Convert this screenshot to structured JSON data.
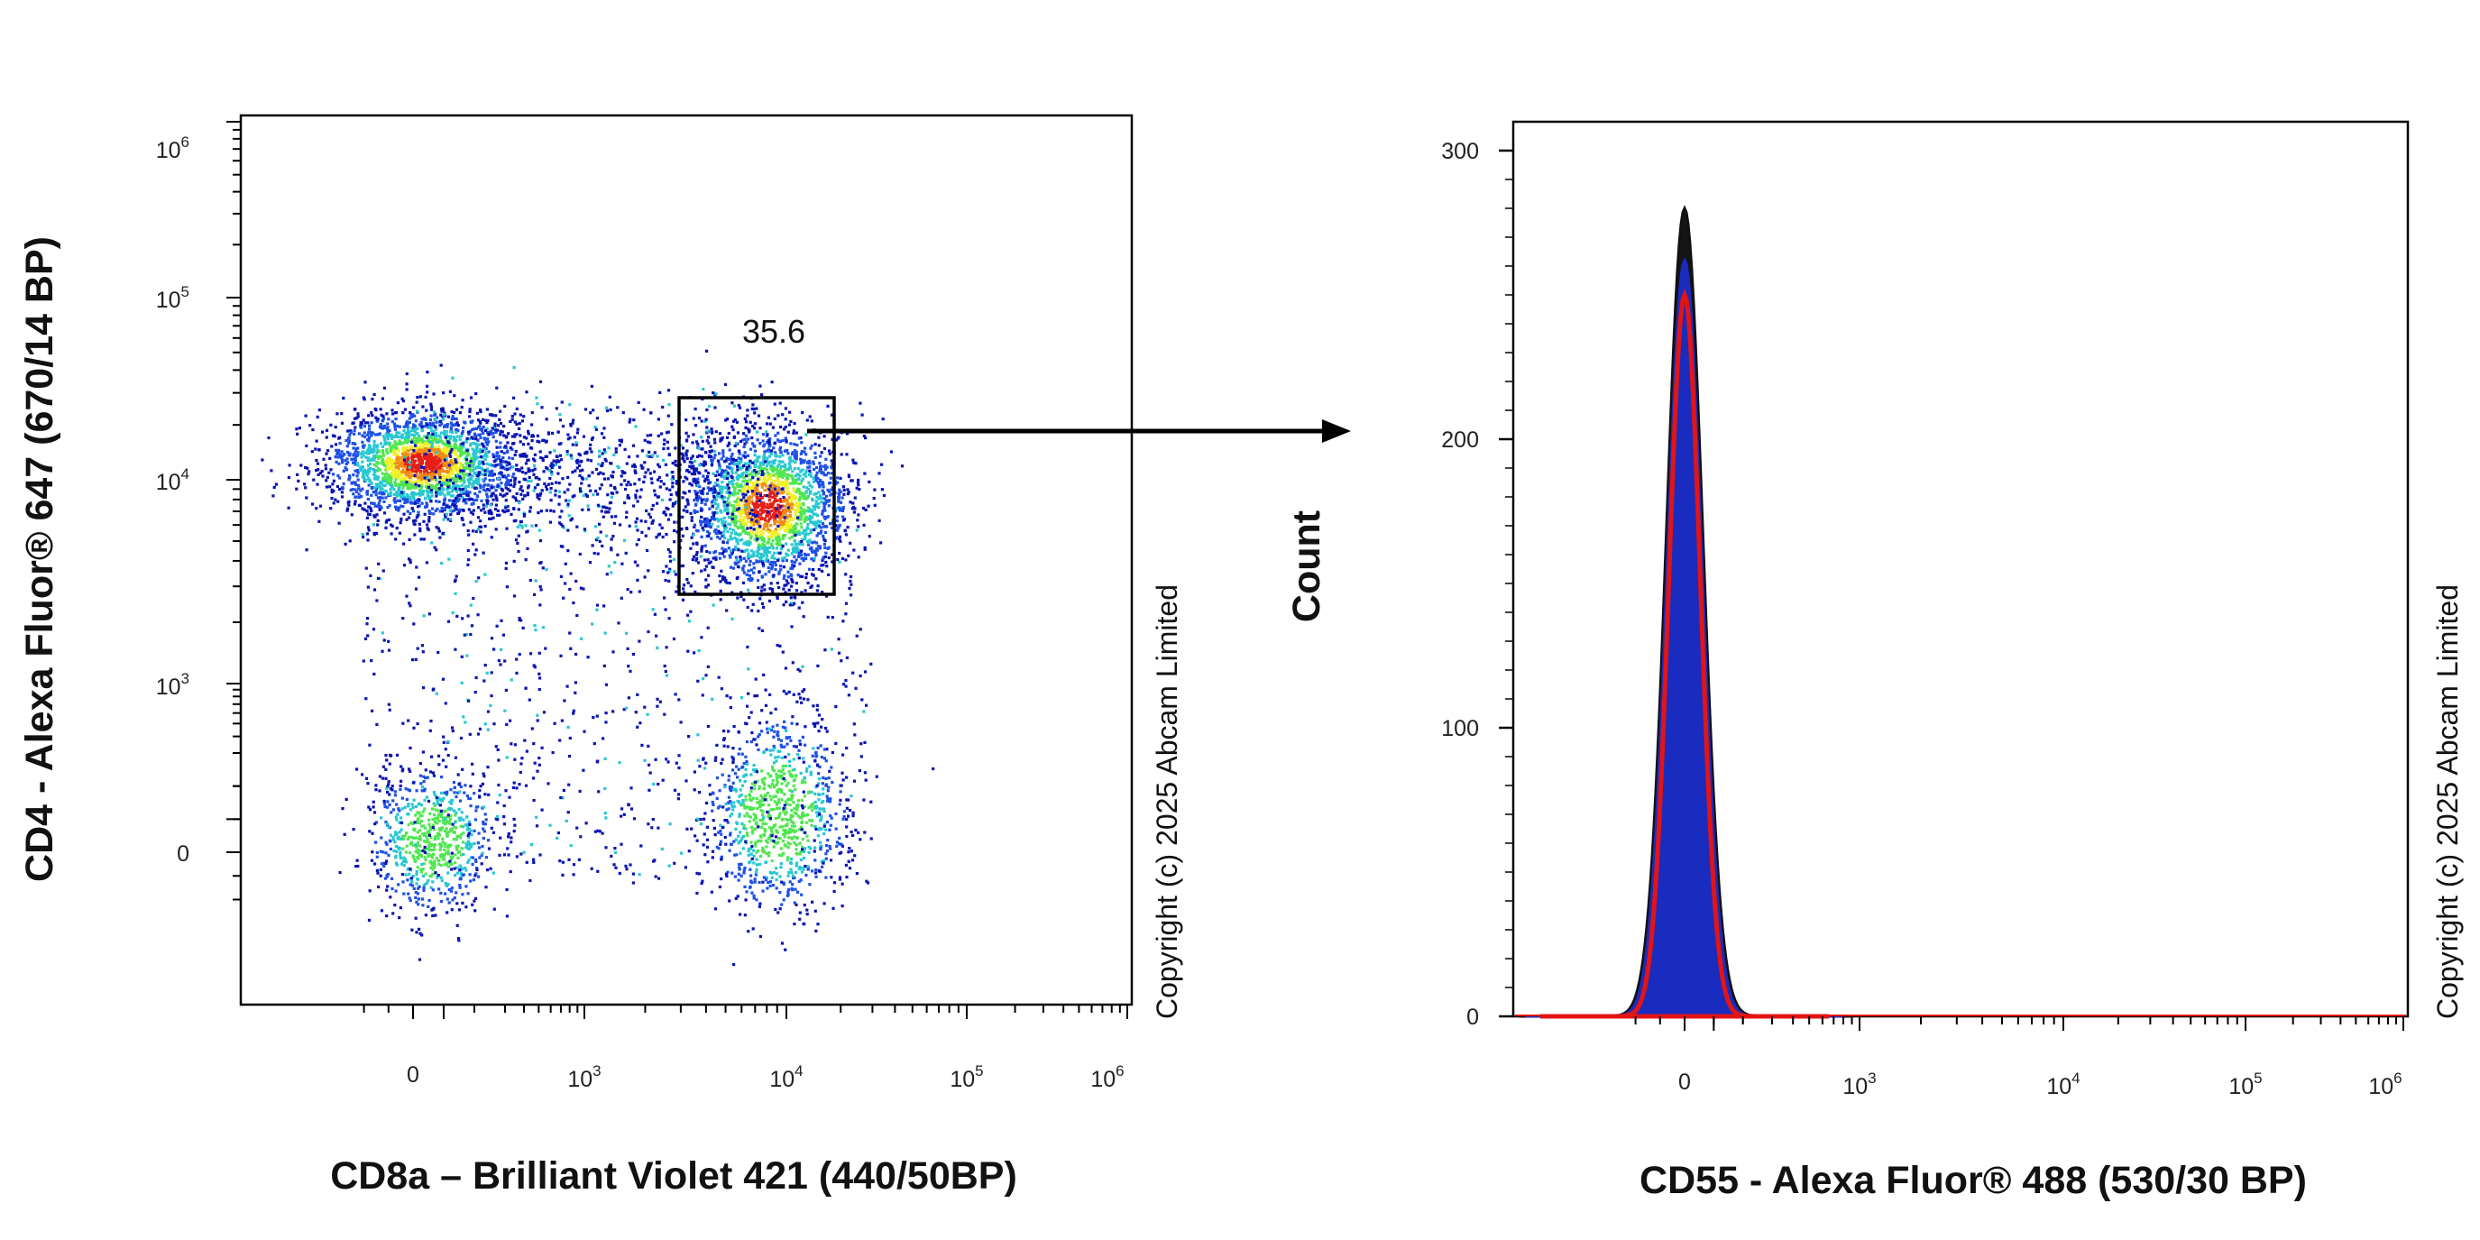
{
  "chart_data": [
    {
      "type": "scatter",
      "subtype": "flow-cytometry-density-dot-plot",
      "title": "",
      "xlabel": "CD8a – Brilliant Violet 421 (440/50BP)",
      "ylabel": "CD4 - Alexa Fluor® 647 (670/14 BP)",
      "x_scale": "biexponential",
      "y_scale": "biexponential",
      "xlim": [
        -250,
        1000000
      ],
      "ylim": [
        -400,
        1000000
      ],
      "x_tick_labels": [
        "0",
        "10^3",
        "10^4",
        "10^5",
        "10^6"
      ],
      "y_tick_labels": [
        "0",
        "10^3",
        "10^4",
        "10^5",
        "10^6"
      ],
      "populations": [
        {
          "x": 30,
          "y": 12500,
          "note": "CD4+ CD8-"
        },
        {
          "x": 8000,
          "y": 7500,
          "note": "CD4+ CD8+ (gated)"
        },
        {
          "x": 60,
          "y": 40,
          "note": "CD4- CD8-"
        },
        {
          "x": 9000,
          "y": 120,
          "note": "CD4- CD8+"
        }
      ],
      "gate": {
        "label": "35.6",
        "x_range": [
          3300,
          20000
        ],
        "y_range": [
          2800,
          28000
        ]
      },
      "density_colors": [
        "#0a14b4",
        "#1e50e6",
        "#28c8d2",
        "#50e650",
        "#f0f028",
        "#f08c14",
        "#e61e14"
      ],
      "grid": false,
      "legend": "none",
      "copyright": "Copyright (c) 2025 Abcam Limited"
    },
    {
      "type": "histogram",
      "title": "",
      "xlabel": "CD55 - Alexa Fluor® 488 (530/30 BP)",
      "ylabel": "Count",
      "x_scale": "biexponential",
      "xlim": [
        -250,
        1000000
      ],
      "ylim": [
        0,
        310
      ],
      "x_tick_labels": [
        "0",
        "10^3",
        "10^4",
        "10^5",
        "10^6"
      ],
      "y_ticks": [
        0,
        100,
        200,
        300
      ],
      "y_tick_labels": [
        "0",
        "100",
        "200",
        "300"
      ],
      "series": [
        {
          "color": "#111111",
          "peak_x": 0,
          "peak_count": 280
        },
        {
          "color": "#1a2bbf",
          "peak_x": 0,
          "peak_count": 262
        },
        {
          "color": "#e31414",
          "peak_x": 0,
          "peak_count": 250
        }
      ],
      "grid": false,
      "legend": "none",
      "copyright": "Copyright (c) 2025 Abcam Limited"
    }
  ],
  "arrow": {
    "from": "gate",
    "to": "histogram"
  }
}
